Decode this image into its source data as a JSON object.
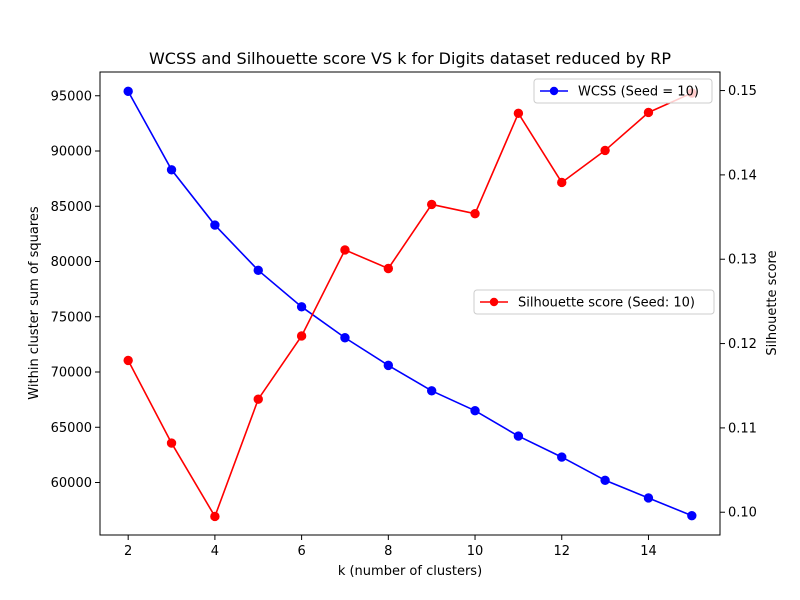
{
  "chart_data": {
    "type": "line",
    "title": "WCSS and Silhouette score VS k for Digits dataset reduced by RP",
    "xlabel": "k (number of clusters)",
    "ylabel_left": "Within cluster sum of squares",
    "ylabel_right": "Silhouette score",
    "x": [
      2,
      3,
      4,
      5,
      6,
      7,
      8,
      9,
      10,
      11,
      12,
      13,
      14,
      15
    ],
    "xlim": [
      1.35,
      15.65
    ],
    "xticks": [
      2,
      4,
      6,
      8,
      10,
      12,
      14
    ],
    "ylim_left": [
      55250,
      97150
    ],
    "yticks_left": [
      60000,
      65000,
      70000,
      75000,
      80000,
      85000,
      90000,
      95000
    ],
    "ylim_right": [
      0.0973,
      0.1522
    ],
    "yticks_right": [
      0.1,
      0.11,
      0.12,
      0.13,
      0.14,
      0.15
    ],
    "grid": false,
    "series": [
      {
        "name": "WCSS (Seed = 10)",
        "axis": "left",
        "color": "#0000ff",
        "legend_position": "upper-right",
        "values": [
          95400,
          88300,
          83300,
          79200,
          75900,
          73100,
          70600,
          68300,
          66500,
          64200,
          62300,
          60200,
          58600,
          57000
        ]
      },
      {
        "name": "Silhouette score (Seed: 10)",
        "axis": "right",
        "color": "#ff0000",
        "legend_position": "center-right",
        "values": [
          0.118,
          0.1082,
          0.0995,
          0.1134,
          0.1209,
          0.1311,
          0.1289,
          0.1365,
          0.1354,
          0.1473,
          0.1391,
          0.1429,
          0.1474,
          0.1497
        ]
      }
    ]
  }
}
